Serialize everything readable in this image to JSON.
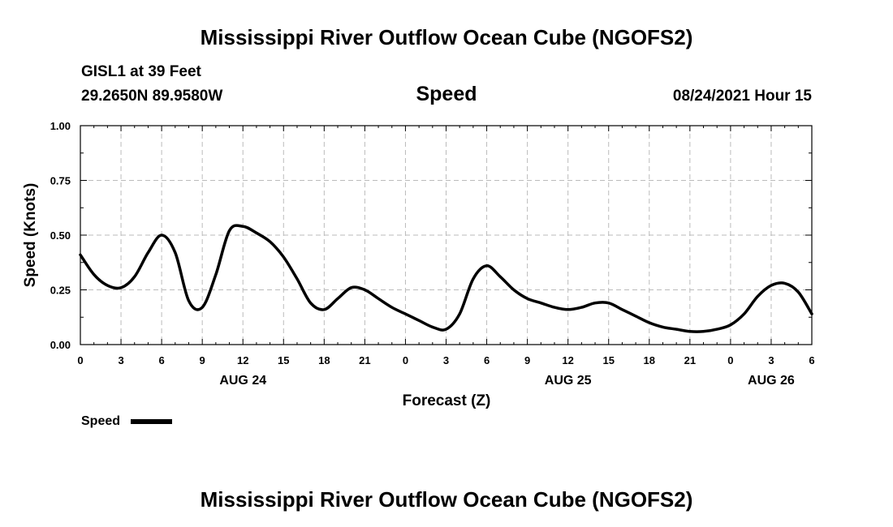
{
  "page_title": "Mississippi River Outflow Ocean Cube (NGOFS2)",
  "footer_title": "Mississippi River Outflow Ocean Cube (NGOFS2)",
  "station": "GISL1 at 39 Feet",
  "coordinates": "29.2650N  89.9580W",
  "timestamp": "08/24/2021 Hour 15",
  "colors": {
    "line": "#000000",
    "grid": "#bbbbbb",
    "background": "#ffffff"
  },
  "chart_data": {
    "type": "line",
    "title": "Speed",
    "xlabel": "Forecast (Z)",
    "ylabel": "Speed (Knots)",
    "xlim": [
      0,
      54
    ],
    "ylim": [
      0,
      1.0
    ],
    "grid": true,
    "legend_position": "bottom-left",
    "x_tick_values": [
      0,
      3,
      6,
      9,
      12,
      15,
      18,
      21,
      24,
      27,
      30,
      33,
      36,
      39,
      42,
      45,
      48,
      51,
      54
    ],
    "x_tick_labels": [
      "0",
      "3",
      "6",
      "9",
      "12",
      "15",
      "18",
      "21",
      "0",
      "3",
      "6",
      "9",
      "12",
      "15",
      "18",
      "21",
      "0",
      "3",
      "6"
    ],
    "y_tick_values": [
      0,
      0.25,
      0.5,
      0.75,
      1.0
    ],
    "y_tick_labels": [
      "0.00",
      "0.25",
      "0.50",
      "0.75",
      "1.00"
    ],
    "date_labels": [
      {
        "x": 12,
        "label": "AUG 24"
      },
      {
        "x": 36,
        "label": "AUG 25"
      },
      {
        "x": 51,
        "label": "AUG 26"
      }
    ],
    "series": [
      {
        "name": "Speed",
        "x": [
          0,
          1,
          2,
          3,
          4,
          5,
          6,
          7,
          8,
          9,
          10,
          11,
          12,
          13,
          14,
          15,
          16,
          17,
          18,
          19,
          20,
          21,
          22,
          23,
          24,
          25,
          26,
          27,
          28,
          29,
          30,
          31,
          32,
          33,
          34,
          35,
          36,
          37,
          38,
          39,
          40,
          41,
          42,
          43,
          44,
          45,
          46,
          47,
          48,
          49,
          50,
          51,
          52,
          53,
          54
        ],
        "y": [
          0.41,
          0.32,
          0.27,
          0.26,
          0.31,
          0.42,
          0.5,
          0.42,
          0.2,
          0.17,
          0.32,
          0.52,
          0.54,
          0.51,
          0.47,
          0.4,
          0.3,
          0.19,
          0.16,
          0.21,
          0.26,
          0.25,
          0.21,
          0.17,
          0.14,
          0.11,
          0.08,
          0.07,
          0.14,
          0.3,
          0.36,
          0.31,
          0.25,
          0.21,
          0.19,
          0.17,
          0.16,
          0.17,
          0.19,
          0.19,
          0.16,
          0.13,
          0.1,
          0.08,
          0.07,
          0.06,
          0.06,
          0.07,
          0.09,
          0.14,
          0.22,
          0.27,
          0.28,
          0.24,
          0.14
        ]
      }
    ]
  }
}
